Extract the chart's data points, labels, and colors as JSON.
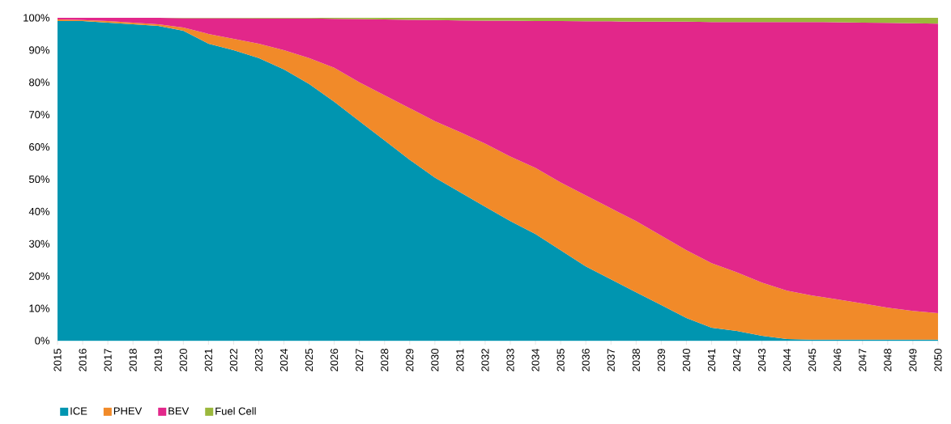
{
  "chart_data": {
    "type": "area",
    "stacked": true,
    "legend": "bottom left",
    "categories": [
      "2015",
      "2016",
      "2017",
      "2018",
      "2019",
      "2020",
      "2021",
      "2022",
      "2023",
      "2024",
      "2025",
      "2026",
      "2027",
      "2028",
      "2029",
      "2030",
      "2031",
      "2032",
      "2033",
      "2034",
      "2035",
      "2036",
      "2037",
      "2038",
      "2039",
      "2040",
      "2041",
      "2042",
      "2043",
      "2044",
      "2045",
      "2046",
      "2047",
      "2048",
      "2049",
      "2050"
    ],
    "ylim": [
      0,
      100
    ],
    "yticks": [
      {
        "value": 0,
        "label": "0%"
      },
      {
        "value": 10,
        "label": "10%"
      },
      {
        "value": 20,
        "label": "20%"
      },
      {
        "value": 30,
        "label": "30%"
      },
      {
        "value": 40,
        "label": "40%"
      },
      {
        "value": 50,
        "label": "50%"
      },
      {
        "value": 60,
        "label": "60%"
      },
      {
        "value": 70,
        "label": "70%"
      },
      {
        "value": 80,
        "label": "80%"
      },
      {
        "value": 90,
        "label": "90%"
      },
      {
        "value": 100,
        "label": "100%"
      }
    ],
    "series": [
      {
        "name": "ICE",
        "color": "#0095b0",
        "values": [
          99,
          99,
          98.5,
          98,
          97.5,
          96,
          92,
          90,
          87.5,
          84,
          79.5,
          74,
          68,
          62,
          56,
          50.5,
          46,
          41.5,
          37,
          33,
          28,
          23,
          19,
          15,
          11,
          7,
          4,
          3,
          1.5,
          0.5,
          0.3,
          0.3,
          0.3,
          0.3,
          0.3,
          0.3
        ]
      },
      {
        "name": "PHEV",
        "color": "#f18a29",
        "values": [
          0.5,
          0.3,
          0.5,
          0.5,
          0.5,
          1,
          3,
          3.5,
          4.5,
          6,
          8,
          10.5,
          12,
          14,
          16,
          17.5,
          18.6,
          19.5,
          20,
          20.5,
          21,
          22,
          22,
          22,
          21.5,
          21,
          20,
          18.2,
          16.5,
          15,
          13.7,
          12.5,
          11.2,
          9.9,
          8.9,
          8.2
        ]
      },
      {
        "name": "BEV",
        "color": "#e2278a",
        "values": [
          0.5,
          0.7,
          1,
          1.5,
          2,
          2.9,
          4.9,
          6.4,
          7.8,
          9.8,
          12.3,
          15.2,
          19.6,
          23.5,
          27.4,
          31.3,
          34.6,
          38.1,
          42.1,
          45.5,
          50,
          53.9,
          57.9,
          61.8,
          66.3,
          70.8,
          74.7,
          77.5,
          80.7,
          83.2,
          84.7,
          85.8,
          87,
          88.2,
          89.1,
          89.7
        ]
      },
      {
        "name": "Fuel Cell",
        "color": "#9bb83c",
        "values": [
          0,
          0,
          0,
          0,
          0,
          0.1,
          0.1,
          0.1,
          0.2,
          0.2,
          0.2,
          0.3,
          0.4,
          0.5,
          0.6,
          0.7,
          0.8,
          0.9,
          0.9,
          1,
          1,
          1.1,
          1.1,
          1.2,
          1.2,
          1.2,
          1.3,
          1.3,
          1.3,
          1.3,
          1.3,
          1.4,
          1.5,
          1.6,
          1.7,
          1.8
        ]
      }
    ]
  }
}
